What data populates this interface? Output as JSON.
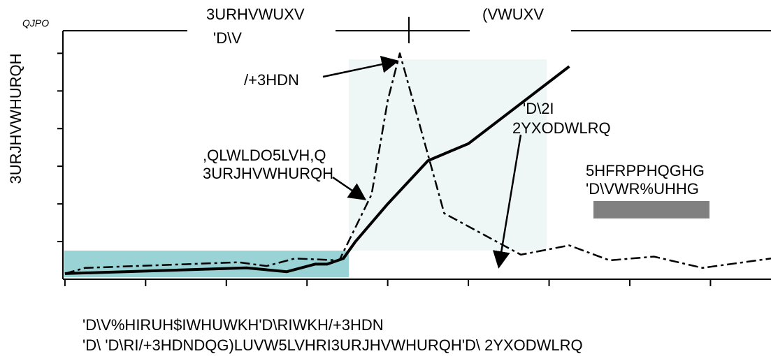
{
  "chart_data": {
    "type": "line",
    "title": "",
    "ylabel": "3URJHVWHURQH",
    "y_unit": "QJPO",
    "xlabel_lines": [
      "'D\\V%HIRUH$IWHUWKH'D\\RIWKH/+3HDN",
      "'D\\ 'D\\RI/+3HDNDQG)LUVW5LVHRI3URJHVWHURQH'D\\ 2YXODWLRQ"
    ],
    "phases": [
      {
        "label_lines": [
          "3URHVWUXV",
          "'D\\V"
        ]
      },
      {
        "label_lines": [
          "(VWUXV"
        ]
      }
    ],
    "annotations": [
      {
        "id": "lh-peak",
        "lines": [
          "/+3HDN"
        ]
      },
      {
        "id": "initial-rise",
        "lines": [
          ",QLWLDO5LVH,Q",
          "3URJHVWHURQH"
        ]
      },
      {
        "id": "ovulation",
        "lines": [
          "'D\\2I",
          "2YXODWLRQ"
        ]
      },
      {
        "id": "recommended",
        "lines": [
          "5HFRPPHQGHG",
          "'D\\VWR%UHHG"
        ]
      }
    ],
    "x_ticks": [
      -2,
      0,
      2,
      4,
      6,
      8,
      10,
      12,
      14
    ],
    "y_ticks": [
      2,
      4,
      6,
      8,
      10,
      12
    ],
    "xlim": [
      -2.05,
      15.5
    ],
    "ylim": [
      0,
      13.2
    ],
    "series": [
      {
        "style": "solid",
        "points": [
          [
            -2,
            0.3
          ],
          [
            2.5,
            0.6
          ],
          [
            3.5,
            0.4
          ],
          [
            4.2,
            0.8
          ],
          [
            4.5,
            0.8
          ],
          [
            4.9,
            1.1
          ],
          [
            5.2,
            2
          ],
          [
            6,
            4
          ],
          [
            7,
            6.3
          ],
          [
            8,
            7.2
          ],
          [
            10.5,
            11.3
          ]
        ]
      },
      {
        "style": "dashdot",
        "points": [
          [
            -2,
            0.3
          ],
          [
            -1.5,
            0.6
          ],
          [
            2.3,
            0.9
          ],
          [
            3.0,
            0.7
          ],
          [
            3.7,
            1.1
          ],
          [
            4.8,
            1.0
          ],
          [
            5.6,
            4.5
          ],
          [
            6.0,
            9.5
          ],
          [
            6.3,
            12
          ],
          [
            7.4,
            3.5
          ],
          [
            9.3,
            1.3
          ],
          [
            10.5,
            1.8
          ],
          [
            11.5,
            1.0
          ],
          [
            12.6,
            1.2
          ],
          [
            13.8,
            0.6
          ],
          [
            15.5,
            1.1
          ]
        ]
      }
    ],
    "colors": {
      "early_band": "#99d3d6",
      "peak_band": "#eef6f6",
      "breed_bar": "#808080"
    }
  }
}
